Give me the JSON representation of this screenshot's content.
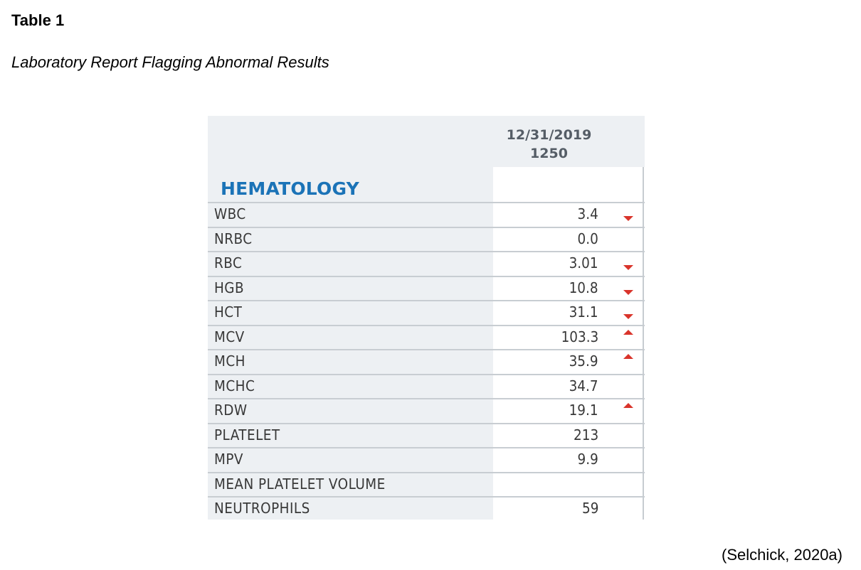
{
  "heading": {
    "table_number": "Table 1",
    "caption": "Laboratory Report Flagging Abnormal Results"
  },
  "report": {
    "date": "12/31/2019",
    "time": "1250",
    "section": "HEMATOLOGY",
    "rows": [
      {
        "name": "WBC",
        "value": "3.4",
        "flag": "low"
      },
      {
        "name": "NRBC",
        "value": "0.0",
        "flag": ""
      },
      {
        "name": "RBC",
        "value": "3.01",
        "flag": "low"
      },
      {
        "name": "HGB",
        "value": "10.8",
        "flag": "low"
      },
      {
        "name": "HCT",
        "value": "31.1",
        "flag": "low"
      },
      {
        "name": "MCV",
        "value": "103.3",
        "flag": "high"
      },
      {
        "name": "MCH",
        "value": "35.9",
        "flag": "high"
      },
      {
        "name": "MCHC",
        "value": "34.7",
        "flag": ""
      },
      {
        "name": "RDW",
        "value": "19.1",
        "flag": "high"
      },
      {
        "name": "PLATELET",
        "value": "213",
        "flag": ""
      },
      {
        "name": "MPV",
        "value": "9.9",
        "flag": ""
      },
      {
        "name": "MEAN PLATELET VOLUME",
        "value": "",
        "flag": ""
      },
      {
        "name": "NEUTROPHILS",
        "value": "59",
        "flag": ""
      }
    ],
    "flag_color": "#d9342b",
    "section_color": "#1b73b7"
  },
  "citation": "(Selchick, 2020a)"
}
